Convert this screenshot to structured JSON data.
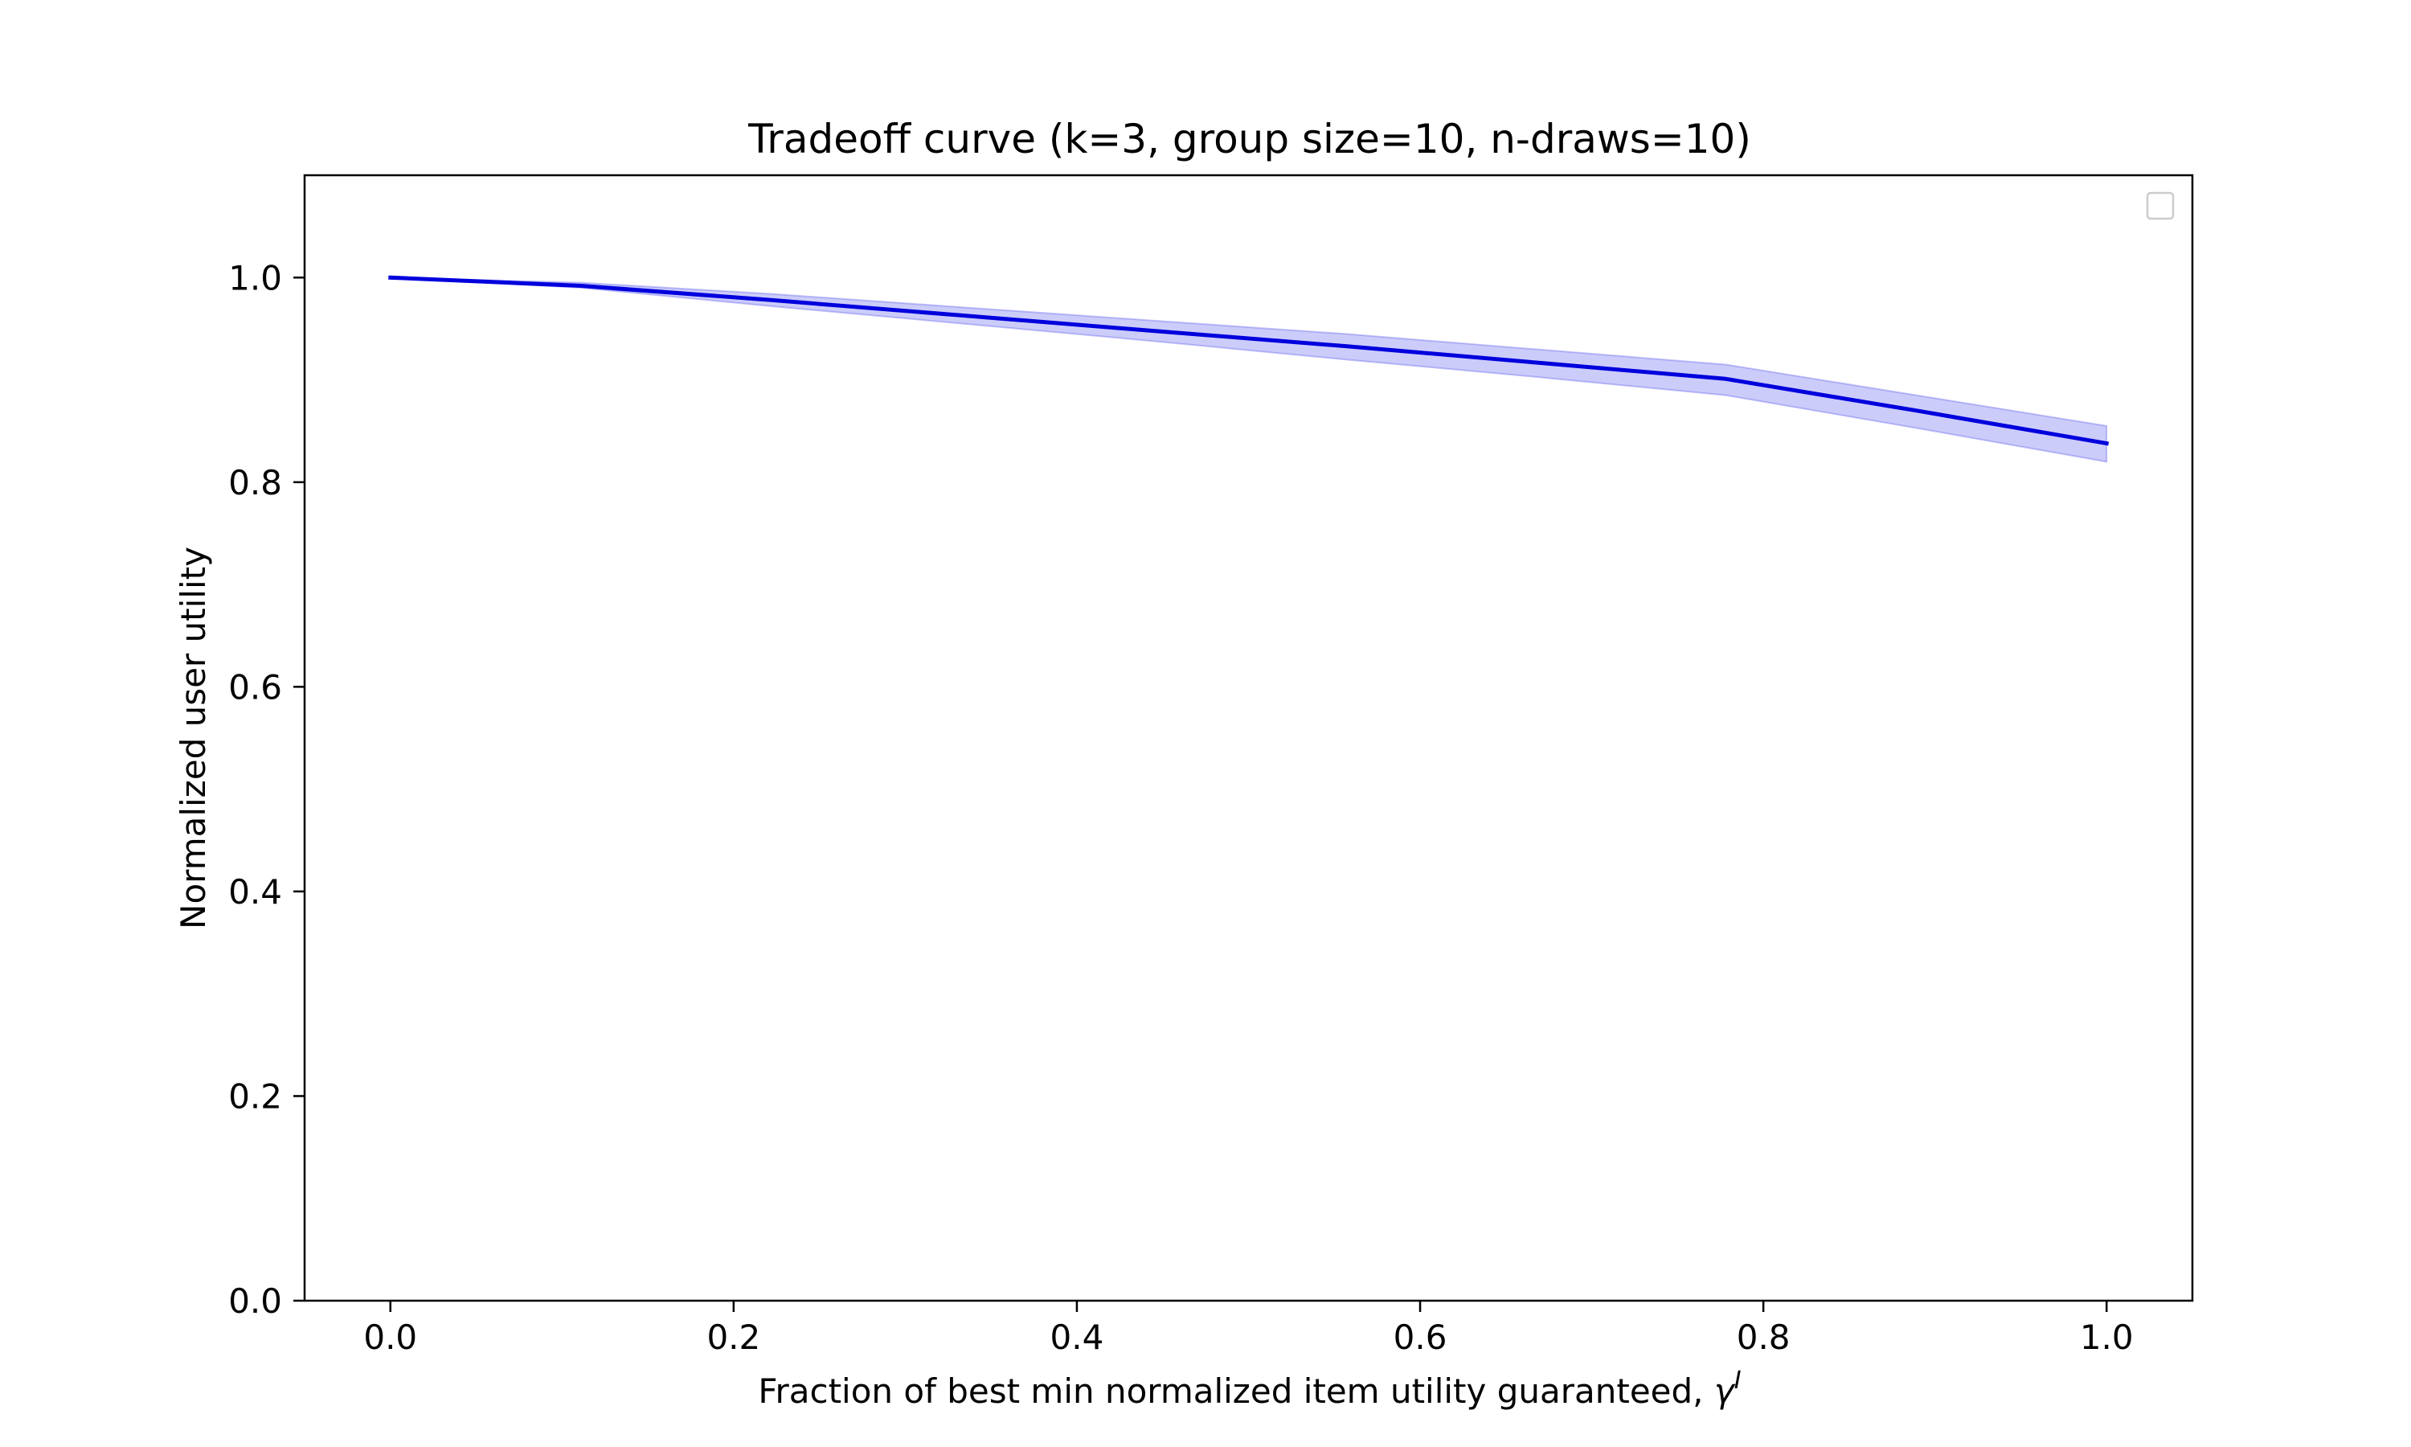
{
  "chart_data": {
    "type": "line",
    "title": "Tradeoff curve (k=3, group size=10, n-draws=10)",
    "xlabel": "Fraction of best min normalized item utility guaranteed, ",
    "xlabel_symbol": "γ",
    "xlabel_superscript": "I",
    "ylabel": "Normalized user utility",
    "xlim": [
      -0.05,
      1.05
    ],
    "ylim": [
      0.0,
      1.1
    ],
    "xticks": [
      0.0,
      0.2,
      0.4,
      0.6,
      0.8,
      1.0
    ],
    "xtick_labels": [
      "0.0",
      "0.2",
      "0.4",
      "0.6",
      "0.8",
      "1.0"
    ],
    "yticks": [
      0.0,
      0.2,
      0.4,
      0.6,
      0.8,
      1.0
    ],
    "ytick_labels": [
      "0.0",
      "0.2",
      "0.4",
      "0.6",
      "0.8",
      "1.0"
    ],
    "grid": false,
    "legend_placement": "top-right",
    "series": [
      {
        "color": "#0000dd",
        "band_color": "#5555ee",
        "x": [
          0.0,
          0.111,
          0.222,
          0.333,
          0.444,
          0.556,
          0.667,
          0.778,
          0.889,
          1.0
        ],
        "y": [
          1.0,
          0.992,
          0.978,
          0.963,
          0.948,
          0.933,
          0.917,
          0.901,
          0.87,
          0.838
        ],
        "lower": [
          1.0,
          0.99,
          0.972,
          0.955,
          0.938,
          0.92,
          0.903,
          0.885,
          0.853,
          0.82
        ],
        "upper": [
          1.0,
          0.995,
          0.984,
          0.971,
          0.958,
          0.945,
          0.93,
          0.915,
          0.885,
          0.855
        ]
      }
    ]
  }
}
